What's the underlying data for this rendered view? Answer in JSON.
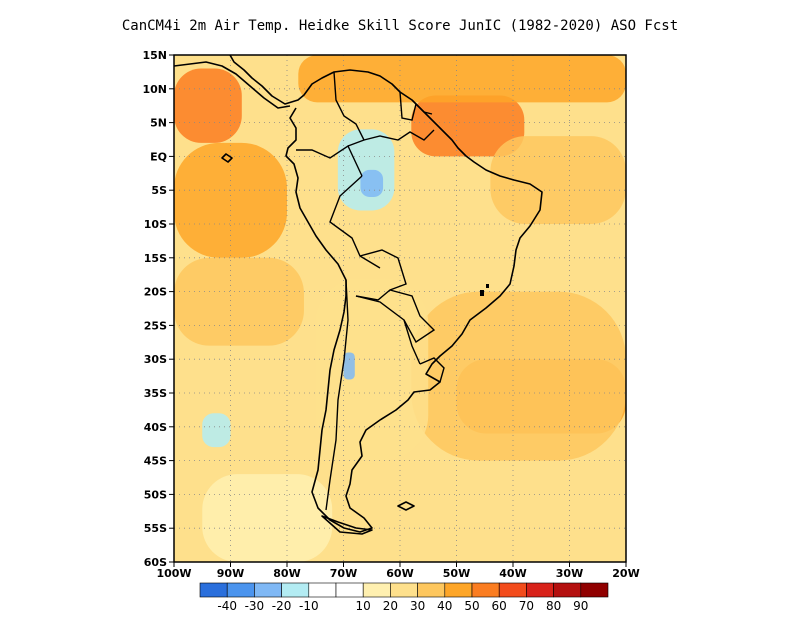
{
  "title": "CanCM4i  2m Air Temp. Heidke Skill Score JunIC (1982-2020) ASO Fcst",
  "map": {
    "projection": "lat-lon",
    "lon_range": [
      -100,
      -20
    ],
    "lat_range": [
      -60,
      15
    ],
    "grid": "dotted",
    "lat_ticks": [
      {
        "value": 15,
        "label": "15N"
      },
      {
        "value": 10,
        "label": "10N"
      },
      {
        "value": 5,
        "label": "5N"
      },
      {
        "value": 0,
        "label": "EQ"
      },
      {
        "value": -5,
        "label": "5S"
      },
      {
        "value": -10,
        "label": "10S"
      },
      {
        "value": -15,
        "label": "15S"
      },
      {
        "value": -20,
        "label": "20S"
      },
      {
        "value": -25,
        "label": "25S"
      },
      {
        "value": -30,
        "label": "30S"
      },
      {
        "value": -35,
        "label": "35S"
      },
      {
        "value": -40,
        "label": "40S"
      },
      {
        "value": -45,
        "label": "45S"
      },
      {
        "value": -50,
        "label": "50S"
      },
      {
        "value": -55,
        "label": "55S"
      },
      {
        "value": -60,
        "label": "60S"
      }
    ],
    "lon_ticks": [
      {
        "value": -100,
        "label": "100W"
      },
      {
        "value": -90,
        "label": "90W"
      },
      {
        "value": -80,
        "label": "80W"
      },
      {
        "value": -70,
        "label": "70W"
      },
      {
        "value": -60,
        "label": "60W"
      },
      {
        "value": -50,
        "label": "50W"
      },
      {
        "value": -40,
        "label": "40W"
      },
      {
        "value": -30,
        "label": "30W"
      },
      {
        "value": -20,
        "label": "20W"
      }
    ]
  },
  "colorbar": {
    "colors": [
      "#2a6fdc",
      "#4b94ee",
      "#7fb8f5",
      "#b3ecf3",
      "#ffffff",
      "#ffffff",
      "#fff0b0",
      "#fee08c",
      "#fec75e",
      "#fea628",
      "#fb7d21",
      "#f34c1c",
      "#d8221a",
      "#b4100f",
      "#900000"
    ],
    "labels": [
      "-40",
      "-30",
      "-20",
      "-10",
      "10",
      "20",
      "30",
      "40",
      "50",
      "60",
      "70",
      "80",
      "90"
    ]
  },
  "skill_regions": [
    {
      "level": 50,
      "lon": [
        -100,
        -88
      ],
      "lat": [
        2,
        13
      ]
    },
    {
      "level": 50,
      "lon": [
        -58,
        -38
      ],
      "lat": [
        0,
        9
      ]
    },
    {
      "level": 40,
      "lon": [
        -78,
        -20
      ],
      "lat": [
        8,
        15
      ]
    },
    {
      "level": 40,
      "lon": [
        -100,
        -80
      ],
      "lat": [
        -15,
        2
      ]
    },
    {
      "level": 30,
      "lon": [
        -44,
        -20
      ],
      "lat": [
        -10,
        3
      ]
    },
    {
      "level": 40,
      "lon": [
        -50,
        -20
      ],
      "lat": [
        -41,
        -30
      ]
    },
    {
      "level": 30,
      "lon": [
        -58,
        -20
      ],
      "lat": [
        -45,
        -20
      ]
    },
    {
      "level": 30,
      "lon": [
        -100,
        -77
      ],
      "lat": [
        -28,
        -15
      ]
    },
    {
      "level": 20,
      "lon": [
        -75,
        -55
      ],
      "lat": [
        -45,
        -18
      ]
    },
    {
      "level": -10,
      "lon": [
        -71,
        -61
      ],
      "lat": [
        -8,
        4
      ]
    },
    {
      "level": -20,
      "lon": [
        -67,
        -63
      ],
      "lat": [
        -6,
        -2
      ]
    },
    {
      "level": -10,
      "lon": [
        -95,
        -90
      ],
      "lat": [
        -43,
        -38
      ]
    },
    {
      "level": -20,
      "lon": [
        -70,
        -68
      ],
      "lat": [
        -33,
        -29
      ]
    },
    {
      "level": 10,
      "lon": [
        -95,
        -72
      ],
      "lat": [
        -60,
        -47
      ]
    }
  ]
}
